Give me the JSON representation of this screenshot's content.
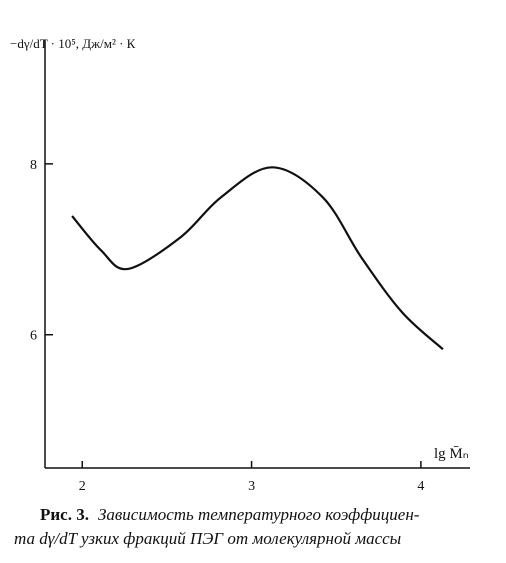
{
  "chart_data": {
    "type": "line",
    "ylabel": "−dγ/dT · 10⁵, Дж/м² · К",
    "xlabel": "lg M̄ₙ",
    "x": [
      1.94,
      2.11,
      2.27,
      2.58,
      2.82,
      3.12,
      3.42,
      3.65,
      3.89,
      4.13
    ],
    "series": [
      {
        "color": "#111111",
        "values": [
          7.39,
          6.99,
          6.77,
          7.14,
          7.61,
          7.96,
          7.61,
          6.9,
          6.26,
          5.83
        ]
      }
    ],
    "xlim": [
      1.78,
      4.29
    ],
    "ylim": [
      4.44,
      9.45
    ],
    "xticks": [
      2,
      3,
      4
    ],
    "yticks": [
      6,
      8
    ]
  },
  "caption": {
    "label": "Рис. 3.",
    "lines": [
      "Зависимость температурного коэффициен-",
      "та dγ/dT узких фракций ПЭГ от молекулярной массы"
    ]
  }
}
